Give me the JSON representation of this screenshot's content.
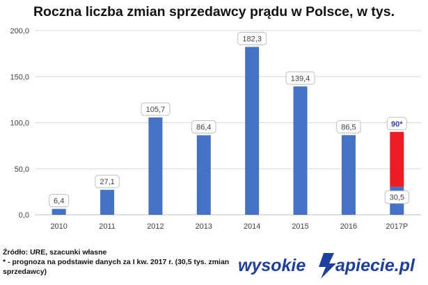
{
  "chart_data": {
    "type": "bar",
    "title": "Roczna liczba zmian sprzedawcy prądu w Polsce, w tys.",
    "categories": [
      "2010",
      "2011",
      "2012",
      "2013",
      "2014",
      "2015",
      "2016",
      "2017P"
    ],
    "values": [
      6.4,
      27.1,
      105.7,
      86.4,
      182.3,
      139.4,
      86.5,
      30.5
    ],
    "value_labels": [
      "6,4",
      "27,1",
      "105,7",
      "86,4",
      "182,3",
      "139,4",
      "86,5",
      "30,5"
    ],
    "forecast": {
      "category": "2017P",
      "base_value": 30.5,
      "total_value": 90,
      "label": "90*",
      "color": "#ec1c24"
    },
    "ylim": [
      0,
      200
    ],
    "yticks": [
      0,
      50,
      100,
      150,
      200
    ],
    "ytick_labels": [
      "0,0",
      "50,0",
      "100,0",
      "150,0",
      "200,0"
    ],
    "grid": true,
    "bar_color": "#4472c4",
    "forecast_label_color": "#3040b0"
  },
  "footer": {
    "source": "Źródło: URE, szacunki własne",
    "note": "* - prognoza na podstawie danych za I kw. 2017 r. (30,5 tys. zmian sprzedawcy)"
  },
  "logo": {
    "left": "wysokie",
    "right": "apiecie.pl",
    "color": "#1f3f9f"
  }
}
